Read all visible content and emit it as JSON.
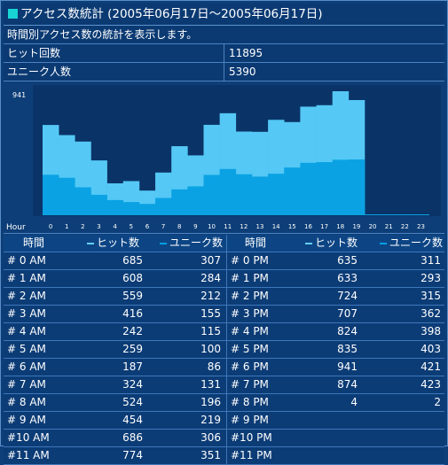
{
  "title": "アクセス数統計 (2005年06月17日～2005年06月17日)",
  "description": "時間別アクセス数の統計を表示します。",
  "summary": [
    {
      "label": "ヒット回数",
      "value": "11895"
    },
    {
      "label": "ユニーク人数",
      "value": "5390"
    }
  ],
  "colors": {
    "hits": "#55c8f5",
    "unique": "#0aa2e3",
    "panel": "#0d3e77"
  },
  "chart_data": {
    "type": "bar",
    "ymax_label": "941",
    "xlabel": "Hour",
    "categories": [
      "0",
      "1",
      "2",
      "3",
      "4",
      "5",
      "6",
      "7",
      "8",
      "9",
      "10",
      "11",
      "12",
      "13",
      "14",
      "15",
      "16",
      "17",
      "18",
      "19",
      "20",
      "21",
      "22",
      "23"
    ],
    "series": [
      {
        "name": "ヒット数",
        "values": [
          685,
          608,
          559,
          416,
          242,
          259,
          187,
          324,
          524,
          454,
          686,
          774,
          635,
          633,
          724,
          707,
          824,
          835,
          941,
          874,
          4,
          0,
          0,
          0
        ]
      },
      {
        "name": "ユニーク数",
        "values": [
          307,
          284,
          212,
          155,
          115,
          100,
          86,
          131,
          196,
          219,
          306,
          351,
          311,
          293,
          315,
          362,
          398,
          403,
          421,
          423,
          2,
          0,
          0,
          0
        ]
      }
    ],
    "ylim": [
      0,
      941
    ]
  },
  "table": {
    "headers": {
      "time": "時間",
      "hits": "ヒット数",
      "unique": "ユニーク数"
    },
    "rows": [
      {
        "am_label": "# 0 AM",
        "am_hits": "685",
        "am_unique": "307",
        "pm_label": "# 0 PM",
        "pm_hits": "635",
        "pm_unique": "311"
      },
      {
        "am_label": "# 1 AM",
        "am_hits": "608",
        "am_unique": "284",
        "pm_label": "# 1 PM",
        "pm_hits": "633",
        "pm_unique": "293"
      },
      {
        "am_label": "# 2 AM",
        "am_hits": "559",
        "am_unique": "212",
        "pm_label": "# 2 PM",
        "pm_hits": "724",
        "pm_unique": "315"
      },
      {
        "am_label": "# 3 AM",
        "am_hits": "416",
        "am_unique": "155",
        "pm_label": "# 3 PM",
        "pm_hits": "707",
        "pm_unique": "362"
      },
      {
        "am_label": "# 4 AM",
        "am_hits": "242",
        "am_unique": "115",
        "pm_label": "# 4 PM",
        "pm_hits": "824",
        "pm_unique": "398"
      },
      {
        "am_label": "# 5 AM",
        "am_hits": "259",
        "am_unique": "100",
        "pm_label": "# 5 PM",
        "pm_hits": "835",
        "pm_unique": "403"
      },
      {
        "am_label": "# 6 AM",
        "am_hits": "187",
        "am_unique": "86",
        "pm_label": "# 6 PM",
        "pm_hits": "941",
        "pm_unique": "421"
      },
      {
        "am_label": "# 7 AM",
        "am_hits": "324",
        "am_unique": "131",
        "pm_label": "# 7 PM",
        "pm_hits": "874",
        "pm_unique": "423"
      },
      {
        "am_label": "# 8 AM",
        "am_hits": "524",
        "am_unique": "196",
        "pm_label": "# 8 PM",
        "pm_hits": "4",
        "pm_unique": "2"
      },
      {
        "am_label": "# 9 AM",
        "am_hits": "454",
        "am_unique": "219",
        "pm_label": "# 9 PM",
        "pm_hits": "",
        "pm_unique": ""
      },
      {
        "am_label": "#10 AM",
        "am_hits": "686",
        "am_unique": "306",
        "pm_label": "#10 PM",
        "pm_hits": "",
        "pm_unique": ""
      },
      {
        "am_label": "#11 AM",
        "am_hits": "774",
        "am_unique": "351",
        "pm_label": "#11 PM",
        "pm_hits": "",
        "pm_unique": ""
      }
    ]
  }
}
